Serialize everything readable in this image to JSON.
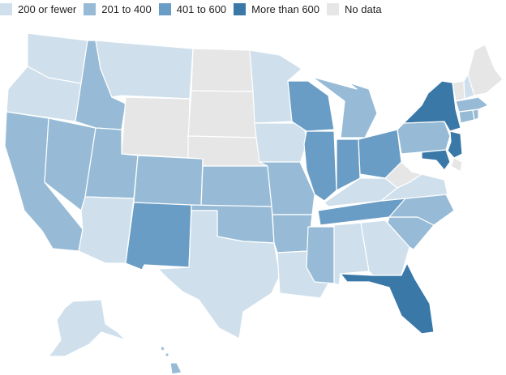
{
  "legend": [
    {
      "label": "200 or fewer",
      "color": "#cfe0ec"
    },
    {
      "label": "201 to 400",
      "color": "#97bbd6"
    },
    {
      "label": "401 to 600",
      "color": "#6a9dc5"
    },
    {
      "label": "More than 600",
      "color": "#3a78a8"
    },
    {
      "label": "No data",
      "color": "#e6e6e6"
    }
  ],
  "states": [
    {
      "abbr": "WA",
      "category": "200 or fewer"
    },
    {
      "abbr": "OR",
      "category": "200 or fewer"
    },
    {
      "abbr": "CA",
      "category": "201 to 400"
    },
    {
      "abbr": "NV",
      "category": "201 to 400"
    },
    {
      "abbr": "ID",
      "category": "201 to 400"
    },
    {
      "abbr": "MT",
      "category": "200 or fewer"
    },
    {
      "abbr": "WY",
      "category": "No data"
    },
    {
      "abbr": "UT",
      "category": "201 to 400"
    },
    {
      "abbr": "AZ",
      "category": "200 or fewer"
    },
    {
      "abbr": "CO",
      "category": "201 to 400"
    },
    {
      "abbr": "NM",
      "category": "401 to 600"
    },
    {
      "abbr": "ND",
      "category": "No data"
    },
    {
      "abbr": "SD",
      "category": "No data"
    },
    {
      "abbr": "NE",
      "category": "No data"
    },
    {
      "abbr": "KS",
      "category": "201 to 400"
    },
    {
      "abbr": "OK",
      "category": "201 to 400"
    },
    {
      "abbr": "TX",
      "category": "200 or fewer"
    },
    {
      "abbr": "MN",
      "category": "200 or fewer"
    },
    {
      "abbr": "IA",
      "category": "200 or fewer"
    },
    {
      "abbr": "MO",
      "category": "201 to 400"
    },
    {
      "abbr": "AR",
      "category": "201 to 400"
    },
    {
      "abbr": "LA",
      "category": "200 or fewer"
    },
    {
      "abbr": "WI",
      "category": "401 to 600"
    },
    {
      "abbr": "IL",
      "category": "401 to 600"
    },
    {
      "abbr": "MI",
      "category": "201 to 400"
    },
    {
      "abbr": "IN",
      "category": "401 to 600"
    },
    {
      "abbr": "OH",
      "category": "401 to 600"
    },
    {
      "abbr": "KY",
      "category": "200 or fewer"
    },
    {
      "abbr": "TN",
      "category": "401 to 600"
    },
    {
      "abbr": "MS",
      "category": "201 to 400"
    },
    {
      "abbr": "AL",
      "category": "200 or fewer"
    },
    {
      "abbr": "GA",
      "category": "200 or fewer"
    },
    {
      "abbr": "FL",
      "category": "More than 600"
    },
    {
      "abbr": "SC",
      "category": "201 to 400"
    },
    {
      "abbr": "NC",
      "category": "201 to 400"
    },
    {
      "abbr": "VA",
      "category": "200 or fewer"
    },
    {
      "abbr": "WV",
      "category": "No data"
    },
    {
      "abbr": "PA",
      "category": "201 to 400"
    },
    {
      "abbr": "NY",
      "category": "More than 600"
    },
    {
      "abbr": "NJ",
      "category": "More than 600"
    },
    {
      "abbr": "MD",
      "category": "More than 600"
    },
    {
      "abbr": "DE",
      "category": "No data"
    },
    {
      "abbr": "CT",
      "category": "201 to 400"
    },
    {
      "abbr": "RI",
      "category": "201 to 400"
    },
    {
      "abbr": "MA",
      "category": "201 to 400"
    },
    {
      "abbr": "VT",
      "category": "No data"
    },
    {
      "abbr": "NH",
      "category": "200 or fewer"
    },
    {
      "abbr": "ME",
      "category": "No data"
    },
    {
      "abbr": "AK",
      "category": "200 or fewer"
    },
    {
      "abbr": "HI",
      "category": "201 to 400"
    }
  ]
}
